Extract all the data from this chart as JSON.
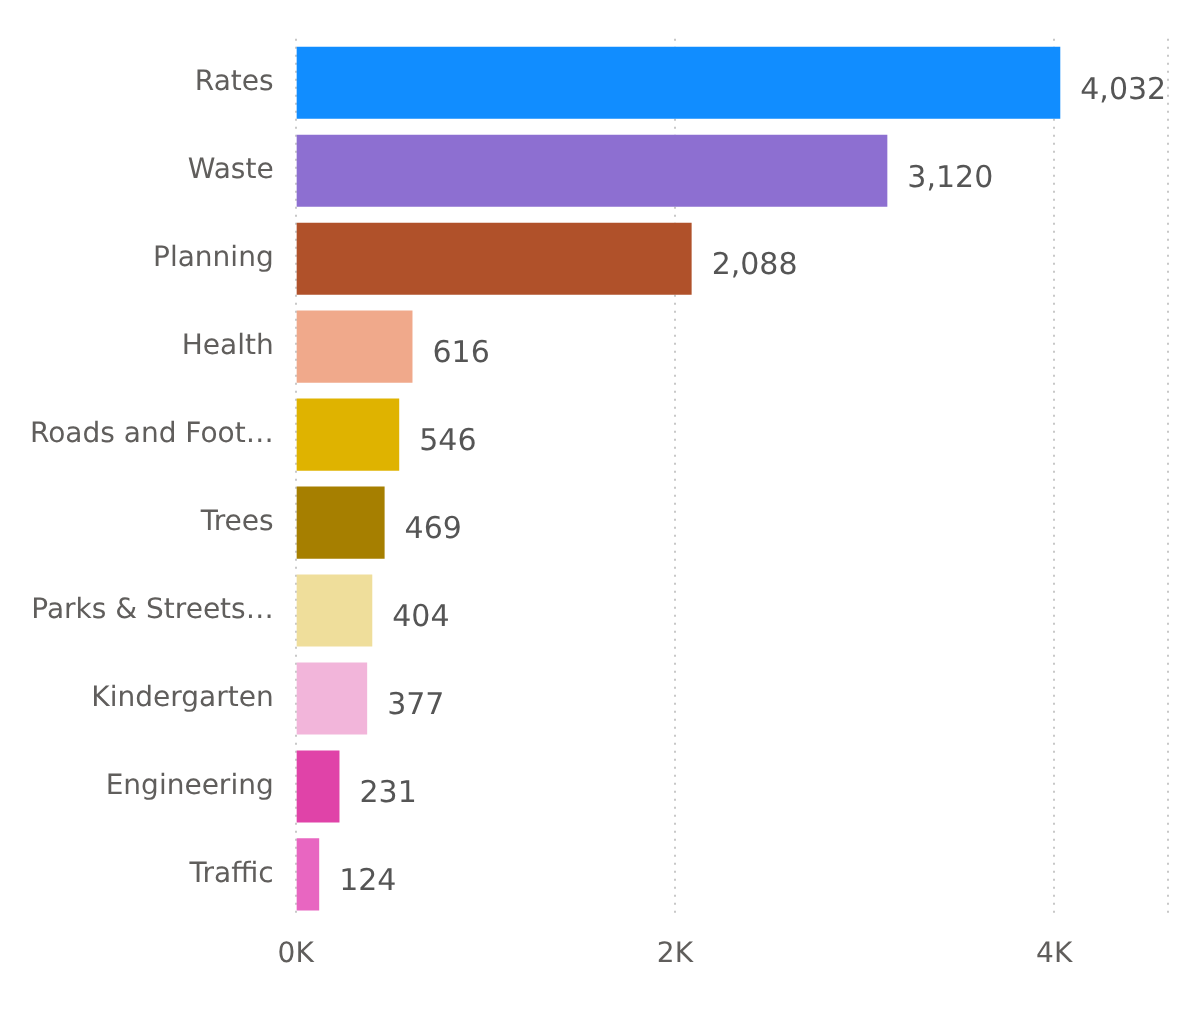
{
  "chart_data": {
    "type": "bar",
    "orientation": "horizontal",
    "categories": [
      "Rates",
      "Waste",
      "Planning",
      "Health",
      "Roads and Foot…",
      "Trees",
      "Parks & Streets…",
      "Kindergarten",
      "Engineering",
      "Traffic"
    ],
    "values": [
      4032,
      3120,
      2088,
      616,
      546,
      469,
      404,
      377,
      231,
      124
    ],
    "colors": [
      "#118dff",
      "#8d6fd1",
      "#b0512a",
      "#f0a98b",
      "#dfb300",
      "#a67f00",
      "#efde9b",
      "#f2b5da",
      "#e043a8",
      "#e866c1"
    ],
    "value_labels": [
      "4,032",
      "3,120",
      "2,088",
      "616",
      "546",
      "469",
      "404",
      "377",
      "231",
      "124"
    ],
    "xlim": [
      0,
      4600
    ],
    "xticks": [
      {
        "value": 0,
        "label": "0K"
      },
      {
        "value": 2000,
        "label": "2K"
      },
      {
        "value": 4000,
        "label": "4K"
      },
      {
        "value": 4600,
        "label": null
      }
    ],
    "grid": "x",
    "legend": false
  }
}
